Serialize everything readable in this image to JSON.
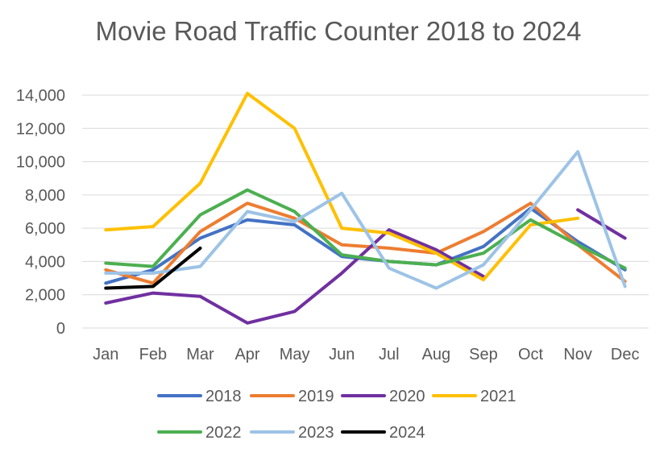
{
  "chart_data": {
    "type": "line",
    "title": "Movie Road Traffic Counter 2018 to 2024",
    "xlabel": "",
    "ylabel": "",
    "categories": [
      "Jan",
      "Feb",
      "Mar",
      "Apr",
      "May",
      "Jun",
      "Jul",
      "Aug",
      "Sep",
      "Oct",
      "Nov",
      "Dec"
    ],
    "ylim": [
      0,
      14000
    ],
    "yticks": [
      0,
      2000,
      4000,
      6000,
      8000,
      10000,
      12000,
      14000
    ],
    "ytick_labels": [
      "0",
      "2,000",
      "4,000",
      "6,000",
      "8,000",
      "10,000",
      "12,000",
      "14,000"
    ],
    "grid": true,
    "legend_position": "bottom",
    "series": [
      {
        "name": "2018",
        "color": "#4472C4",
        "values": [
          2700,
          3500,
          5400,
          6500,
          6200,
          4300,
          4000,
          3800,
          4900,
          7200,
          5200,
          3500
        ]
      },
      {
        "name": "2019",
        "color": "#ED7D31",
        "values": [
          3500,
          2700,
          5800,
          7500,
          6600,
          5000,
          4800,
          4500,
          5800,
          7500,
          5000,
          2800
        ]
      },
      {
        "name": "2020",
        "color": "#7030A0",
        "values": [
          1500,
          2100,
          1900,
          300,
          1000,
          3300,
          5900,
          4700,
          3100,
          null,
          7100,
          5400
        ]
      },
      {
        "name": "2021",
        "color": "#FFC000",
        "values": [
          5900,
          6100,
          8700,
          14100,
          12000,
          6000,
          5700,
          4500,
          2900,
          6200,
          6600,
          null
        ]
      },
      {
        "name": "2022",
        "color": "#4CAF50",
        "values": [
          3900,
          3700,
          6800,
          8300,
          7000,
          4400,
          4000,
          3800,
          4500,
          6500,
          5000,
          3600
        ]
      },
      {
        "name": "2023",
        "color": "#9DC3E6",
        "values": [
          3300,
          3300,
          3700,
          7000,
          6400,
          8100,
          3600,
          2400,
          3800,
          7100,
          10600,
          2500
        ]
      },
      {
        "name": "2024",
        "color": "#000000",
        "values": [
          2400,
          2500,
          4800,
          null,
          null,
          null,
          null,
          null,
          null,
          null,
          null,
          null
        ]
      }
    ]
  }
}
